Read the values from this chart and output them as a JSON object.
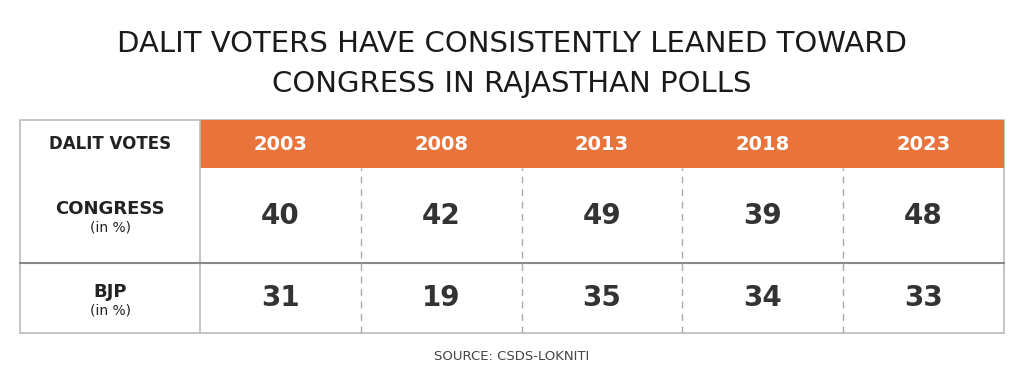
{
  "title_line1": "DALIT VOTERS HAVE CONSISTENTLY LEANED TOWARD",
  "title_line2": "CONGRESS IN RAJASTHAN POLLS",
  "header_label": "DALIT VOTES",
  "years": [
    "2003",
    "2008",
    "2013",
    "2018",
    "2023"
  ],
  "congress_label": "CONGRESS\n(in %)",
  "bjp_label": "BJP\n(in %)",
  "congress_values": [
    40,
    42,
    49,
    39,
    48
  ],
  "bjp_values": [
    31,
    19,
    35,
    34,
    33
  ],
  "header_bg_color": "#E8743B",
  "header_text_color": "#FFFFFF",
  "border_color": "#BBBBBB",
  "dashed_color": "#AAAAAA",
  "row_label_color": "#222222",
  "value_color": "#333333",
  "title_color": "#1A1A1A",
  "source_text": "SOURCE: CSDS-LOKNITI",
  "background_color": "#FFFFFF",
  "source_color": "#444444"
}
